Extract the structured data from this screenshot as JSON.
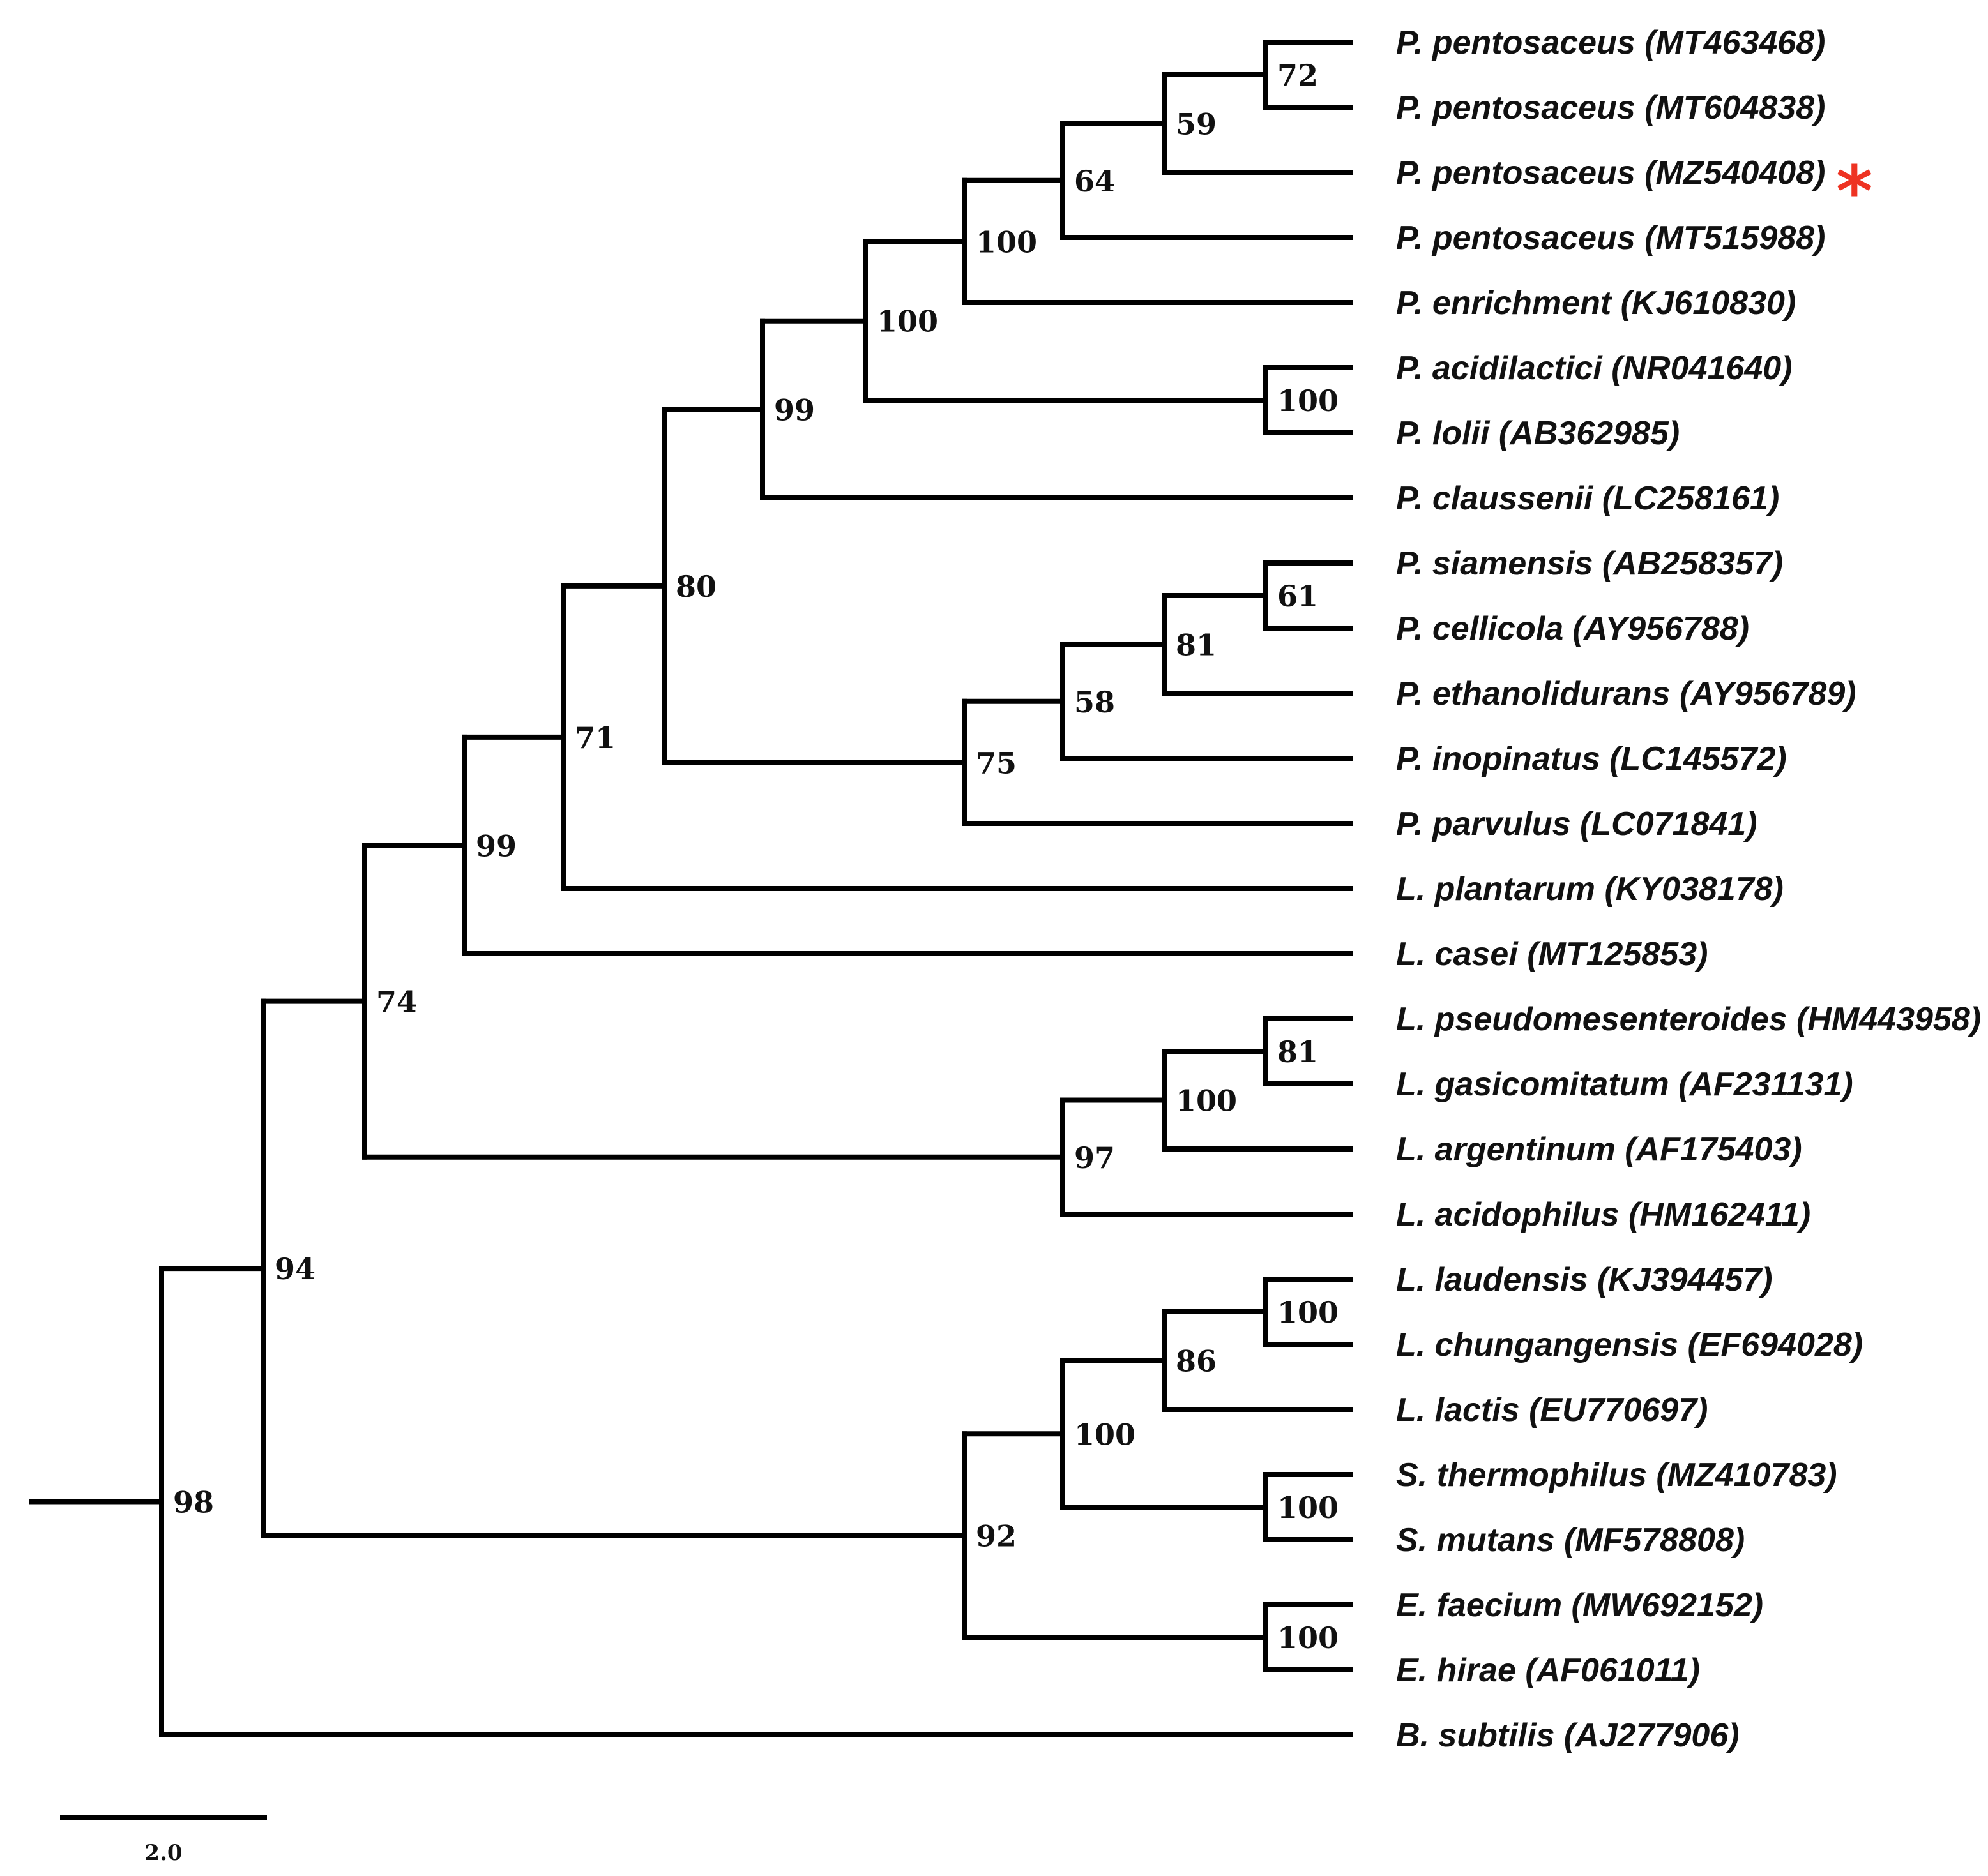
{
  "tree": {
    "taxa": [
      "P. pentosaceus (MT463468)",
      "P. pentosaceus (MT604838)",
      "P. pentosaceus (MZ540408)",
      "P. pentosaceus (MT515988)",
      "P. enrichment (KJ610830)",
      "P. acidilactici (NR041640)",
      "P. lolii (AB362985)",
      "P. claussenii (LC258161)",
      "P. siamensis (AB258357)",
      "P. cellicola (AY956788)",
      "P. ethanolidurans (AY956789)",
      "P. inopinatus (LC145572)",
      "P. parvulus (LC071841)",
      "L. plantarum (KY038178)",
      "L. casei (MT125853)",
      "L. pseudomesenteroides (HM443958)",
      "L. gasicomitatum (AF231131)",
      "L. argentinum (AF175403)",
      "L. acidophilus (HM162411)",
      "L. laudensis (KJ394457)",
      "L. chungangensis (EF694028)",
      "L. lactis (EU770697)",
      "S. thermophilus (MZ410783)",
      "S. mutans (MF578808)",
      "E. faecium (MW692152)",
      "E. hirae (AF061011)",
      "B. subtilis (AJ277906)"
    ],
    "highlighted_taxon_index": 2,
    "highlight_marker": "*",
    "highlight_color": "#ee3322",
    "branch_color": "#000000",
    "nodes": [
      {
        "id": "n72a",
        "support": "72",
        "children": [
          0,
          1
        ]
      },
      {
        "id": "n59",
        "support": "59",
        "children": [
          "n72a",
          2
        ]
      },
      {
        "id": "n64",
        "support": "64",
        "children": [
          "n59",
          3
        ]
      },
      {
        "id": "n100a",
        "support": "100",
        "children": [
          "n64",
          4
        ]
      },
      {
        "id": "n100b",
        "support": "100",
        "children": [
          5,
          6
        ]
      },
      {
        "id": "n100c",
        "support": "100",
        "children": [
          "n100a",
          "n100b"
        ]
      },
      {
        "id": "n99a",
        "support": "99",
        "children": [
          "n100c",
          7
        ]
      },
      {
        "id": "n61",
        "support": "61",
        "children": [
          8,
          9
        ]
      },
      {
        "id": "n81a",
        "support": "81",
        "children": [
          "n61",
          10
        ]
      },
      {
        "id": "n58",
        "support": "58",
        "children": [
          "n81a",
          11
        ]
      },
      {
        "id": "n75",
        "support": "75",
        "children": [
          "n58",
          12
        ]
      },
      {
        "id": "n80",
        "support": "80",
        "children": [
          "n99a",
          "n75"
        ]
      },
      {
        "id": "n71",
        "support": "71",
        "children": [
          "n80",
          13
        ]
      },
      {
        "id": "n99b",
        "support": "99",
        "children": [
          "n71",
          14
        ]
      },
      {
        "id": "n81b",
        "support": "81",
        "children": [
          15,
          16
        ]
      },
      {
        "id": "n100d",
        "support": "100",
        "children": [
          "n81b",
          17
        ]
      },
      {
        "id": "n97",
        "support": "97",
        "children": [
          "n100d",
          18
        ]
      },
      {
        "id": "n74",
        "support": "74",
        "children": [
          "n99b",
          "n97"
        ]
      },
      {
        "id": "n100e",
        "support": "100",
        "children": [
          19,
          20
        ]
      },
      {
        "id": "n86",
        "support": "86",
        "children": [
          "n100e",
          21
        ]
      },
      {
        "id": "n100f",
        "support": "100",
        "children": [
          22,
          23
        ]
      },
      {
        "id": "n100g",
        "support": "100",
        "children": [
          "n86",
          "n100f"
        ]
      },
      {
        "id": "n100h",
        "support": "100",
        "children": [
          24,
          25
        ]
      },
      {
        "id": "n92",
        "support": "92",
        "children": [
          "n100g",
          "n100h"
        ]
      },
      {
        "id": "n94",
        "support": "94",
        "children": [
          "n74",
          "n92"
        ]
      },
      {
        "id": "n98",
        "support": "98",
        "children": [
          "n94",
          26
        ]
      }
    ],
    "scale_bar": {
      "value": 2.0,
      "label": "2.0"
    }
  }
}
